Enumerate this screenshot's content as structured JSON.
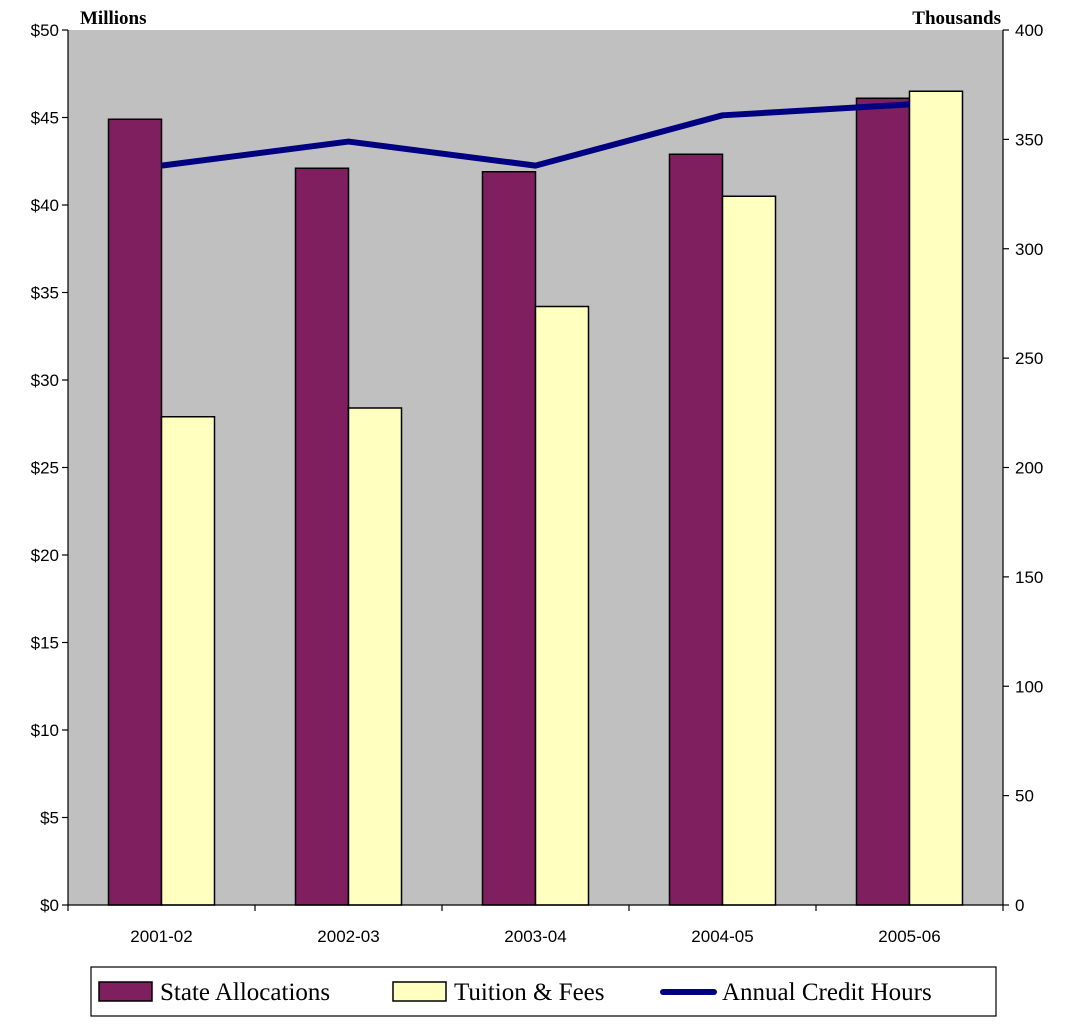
{
  "chart_data": {
    "type": "bar",
    "categories": [
      "2001-02",
      "2002-03",
      "2003-04",
      "2004-05",
      "2005-06"
    ],
    "series": [
      {
        "name": "State Allocations",
        "axis": "left",
        "color": "#7f1f5f",
        "values": [
          44.9,
          42.1,
          41.9,
          42.9,
          46.1
        ]
      },
      {
        "name": "Tuition & Fees",
        "axis": "left",
        "color": "#ffffc0",
        "values": [
          27.9,
          28.4,
          34.2,
          40.5,
          46.5
        ]
      },
      {
        "name": "Annual Credit Hours",
        "axis": "right",
        "type": "line",
        "color": "#000080",
        "values": [
          338,
          349,
          338,
          361,
          366
        ]
      }
    ],
    "left_axis": {
      "unit_label": "Millions",
      "ylim": [
        0,
        50
      ],
      "ticks": [
        0,
        5,
        10,
        15,
        20,
        25,
        30,
        35,
        40,
        45,
        50
      ],
      "tick_labels": [
        "$0",
        "$5",
        "$10",
        "$15",
        "$20",
        "$25",
        "$30",
        "$35",
        "$40",
        "$45",
        "$50"
      ]
    },
    "right_axis": {
      "unit_label": "Thousands",
      "ylim": [
        0,
        400
      ],
      "ticks": [
        0,
        50,
        100,
        150,
        200,
        250,
        300,
        350,
        400
      ],
      "tick_labels": [
        "0",
        "50",
        "100",
        "150",
        "200",
        "250",
        "300",
        "350",
        "400"
      ]
    },
    "plot_background": "#c0c0c0",
    "grid": false,
    "legend_position": "bottom"
  }
}
